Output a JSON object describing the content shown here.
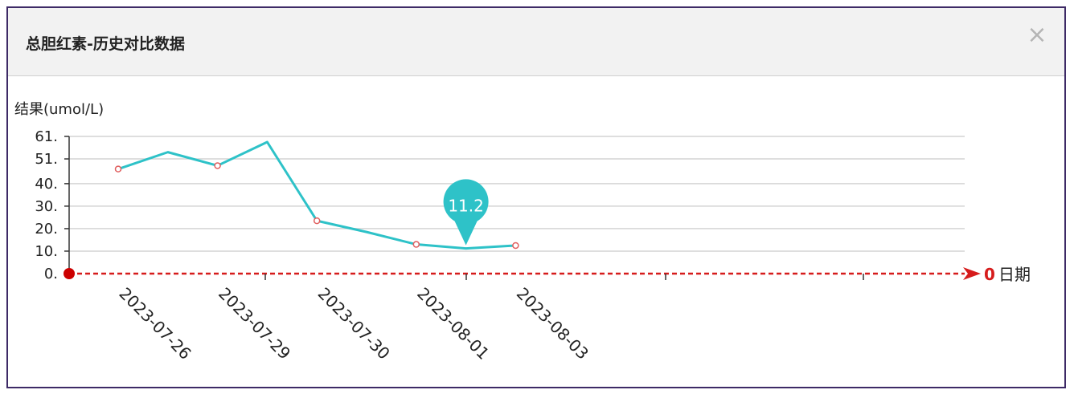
{
  "dialog": {
    "title": "总胆红素-历史对比数据",
    "close_label": "×"
  },
  "colors": {
    "line": "#2ec2c8",
    "marker": "#e06060",
    "axis_x": "#d61c1c",
    "grid": "#d4d4d4",
    "axis_y": "#333333",
    "tooltip": "#2ec2c8"
  },
  "chart_data": {
    "type": "line",
    "ylabel": "结果(umol/L)",
    "xlabel": "日期",
    "y_ticks": [
      "0.",
      "10.",
      "20.",
      "30.",
      "40.",
      "51.",
      "61."
    ],
    "y_tick_values": [
      0,
      10,
      20,
      30,
      40,
      51,
      61
    ],
    "ylim": [
      0,
      61
    ],
    "x_labels": [
      "2023-07-26",
      "2023-07-29",
      "2023-07-30",
      "2023-08-01",
      "2023-08-03"
    ],
    "origin_label": "0",
    "points": [
      {
        "label": "2023-07-26",
        "y": 46.5,
        "marker": true
      },
      {
        "label": "",
        "y": 54,
        "marker": false
      },
      {
        "label": "2023-07-29",
        "y": 48,
        "marker": true
      },
      {
        "label": "",
        "y": 58.5,
        "marker": false
      },
      {
        "label": "2023-07-30",
        "y": 23.5,
        "marker": true
      },
      {
        "label": "",
        "y": 18.5,
        "marker": false
      },
      {
        "label": "2023-08-01",
        "y": 13,
        "marker": true
      },
      {
        "label": "",
        "y": 11.2,
        "marker": false
      },
      {
        "label": "2023-08-03",
        "y": 12.5,
        "marker": true
      }
    ],
    "tooltip": {
      "label": "11.2",
      "point_index": 7
    },
    "grid": true
  }
}
